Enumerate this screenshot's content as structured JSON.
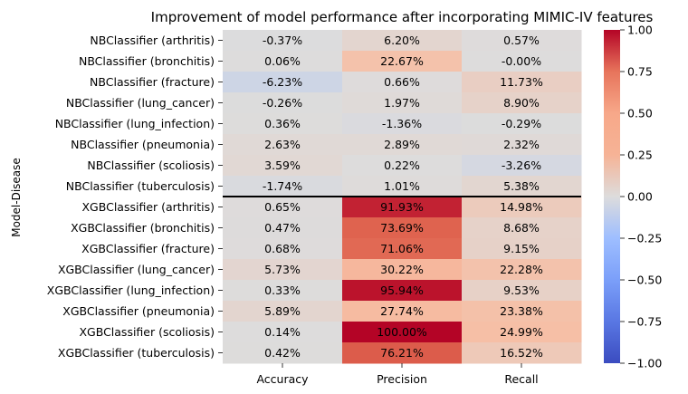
{
  "chart_data": {
    "type": "heatmap",
    "title": "Improvement of model performance after incorporating MIMIC-IV features",
    "ylabel": "Model-Disease",
    "xlabel": "",
    "columns": [
      "Accuracy",
      "Precision",
      "Recall"
    ],
    "rows": [
      "NBClassifier (arthritis)",
      "NBClassifier (bronchitis)",
      "NBClassifier (fracture)",
      "NBClassifier (lung_cancer)",
      "NBClassifier (lung_infection)",
      "NBClassifier (pneumonia)",
      "NBClassifier (scoliosis)",
      "NBClassifier (tuberculosis)",
      "XGBClassifier (arthritis)",
      "XGBClassifier (bronchitis)",
      "XGBClassifier (fracture)",
      "XGBClassifier (lung_cancer)",
      "XGBClassifier (lung_infection)",
      "XGBClassifier (pneumonia)",
      "XGBClassifier (scoliosis)",
      "XGBClassifier (tuberculosis)"
    ],
    "values": [
      [
        -0.0037,
        0.062,
        0.0057
      ],
      [
        0.0006,
        0.2267,
        -0.0
      ],
      [
        -0.0623,
        0.0066,
        0.1173
      ],
      [
        -0.0026,
        0.0197,
        0.089
      ],
      [
        0.0036,
        -0.0136,
        -0.0029
      ],
      [
        0.0263,
        0.0289,
        0.0232
      ],
      [
        0.0359,
        0.0022,
        -0.0326
      ],
      [
        -0.0174,
        0.0101,
        0.0538
      ],
      [
        0.0065,
        0.9193,
        0.1498
      ],
      [
        0.0047,
        0.7369,
        0.0868
      ],
      [
        0.0068,
        0.7106,
        0.0915
      ],
      [
        0.0573,
        0.3022,
        0.2228
      ],
      [
        0.0033,
        0.9594,
        0.0953
      ],
      [
        0.0589,
        0.2774,
        0.2338
      ],
      [
        0.0014,
        1.0,
        0.2499
      ],
      [
        0.0042,
        0.7621,
        0.1652
      ]
    ],
    "cell_labels": [
      [
        "-0.37%",
        "6.20%",
        "0.57%"
      ],
      [
        "0.06%",
        "22.67%",
        "-0.00%"
      ],
      [
        "-6.23%",
        "0.66%",
        "11.73%"
      ],
      [
        "-0.26%",
        "1.97%",
        "8.90%"
      ],
      [
        "0.36%",
        "-1.36%",
        "-0.29%"
      ],
      [
        "2.63%",
        "2.89%",
        "2.32%"
      ],
      [
        "3.59%",
        "0.22%",
        "-3.26%"
      ],
      [
        "-1.74%",
        "1.01%",
        "5.38%"
      ],
      [
        "0.65%",
        "91.93%",
        "14.98%"
      ],
      [
        "0.47%",
        "73.69%",
        "8.68%"
      ],
      [
        "0.68%",
        "71.06%",
        "9.15%"
      ],
      [
        "5.73%",
        "30.22%",
        "22.28%"
      ],
      [
        "0.33%",
        "95.94%",
        "9.53%"
      ],
      [
        "5.89%",
        "27.74%",
        "23.38%"
      ],
      [
        "0.14%",
        "100.00%",
        "24.99%"
      ],
      [
        "0.42%",
        "76.21%",
        "16.52%"
      ]
    ],
    "separator_after_row": 7,
    "colorbar": {
      "colormap": "coolwarm",
      "vmin": -1.0,
      "vmax": 1.0,
      "ticks": [
        -1.0,
        -0.75,
        -0.5,
        -0.25,
        0.0,
        0.25,
        0.5,
        0.75,
        1.0
      ],
      "tick_labels": [
        "−1.00",
        "−0.75",
        "−0.50",
        "−0.25",
        "0.00",
        "0.25",
        "0.50",
        "0.75",
        "1.00"
      ]
    }
  }
}
